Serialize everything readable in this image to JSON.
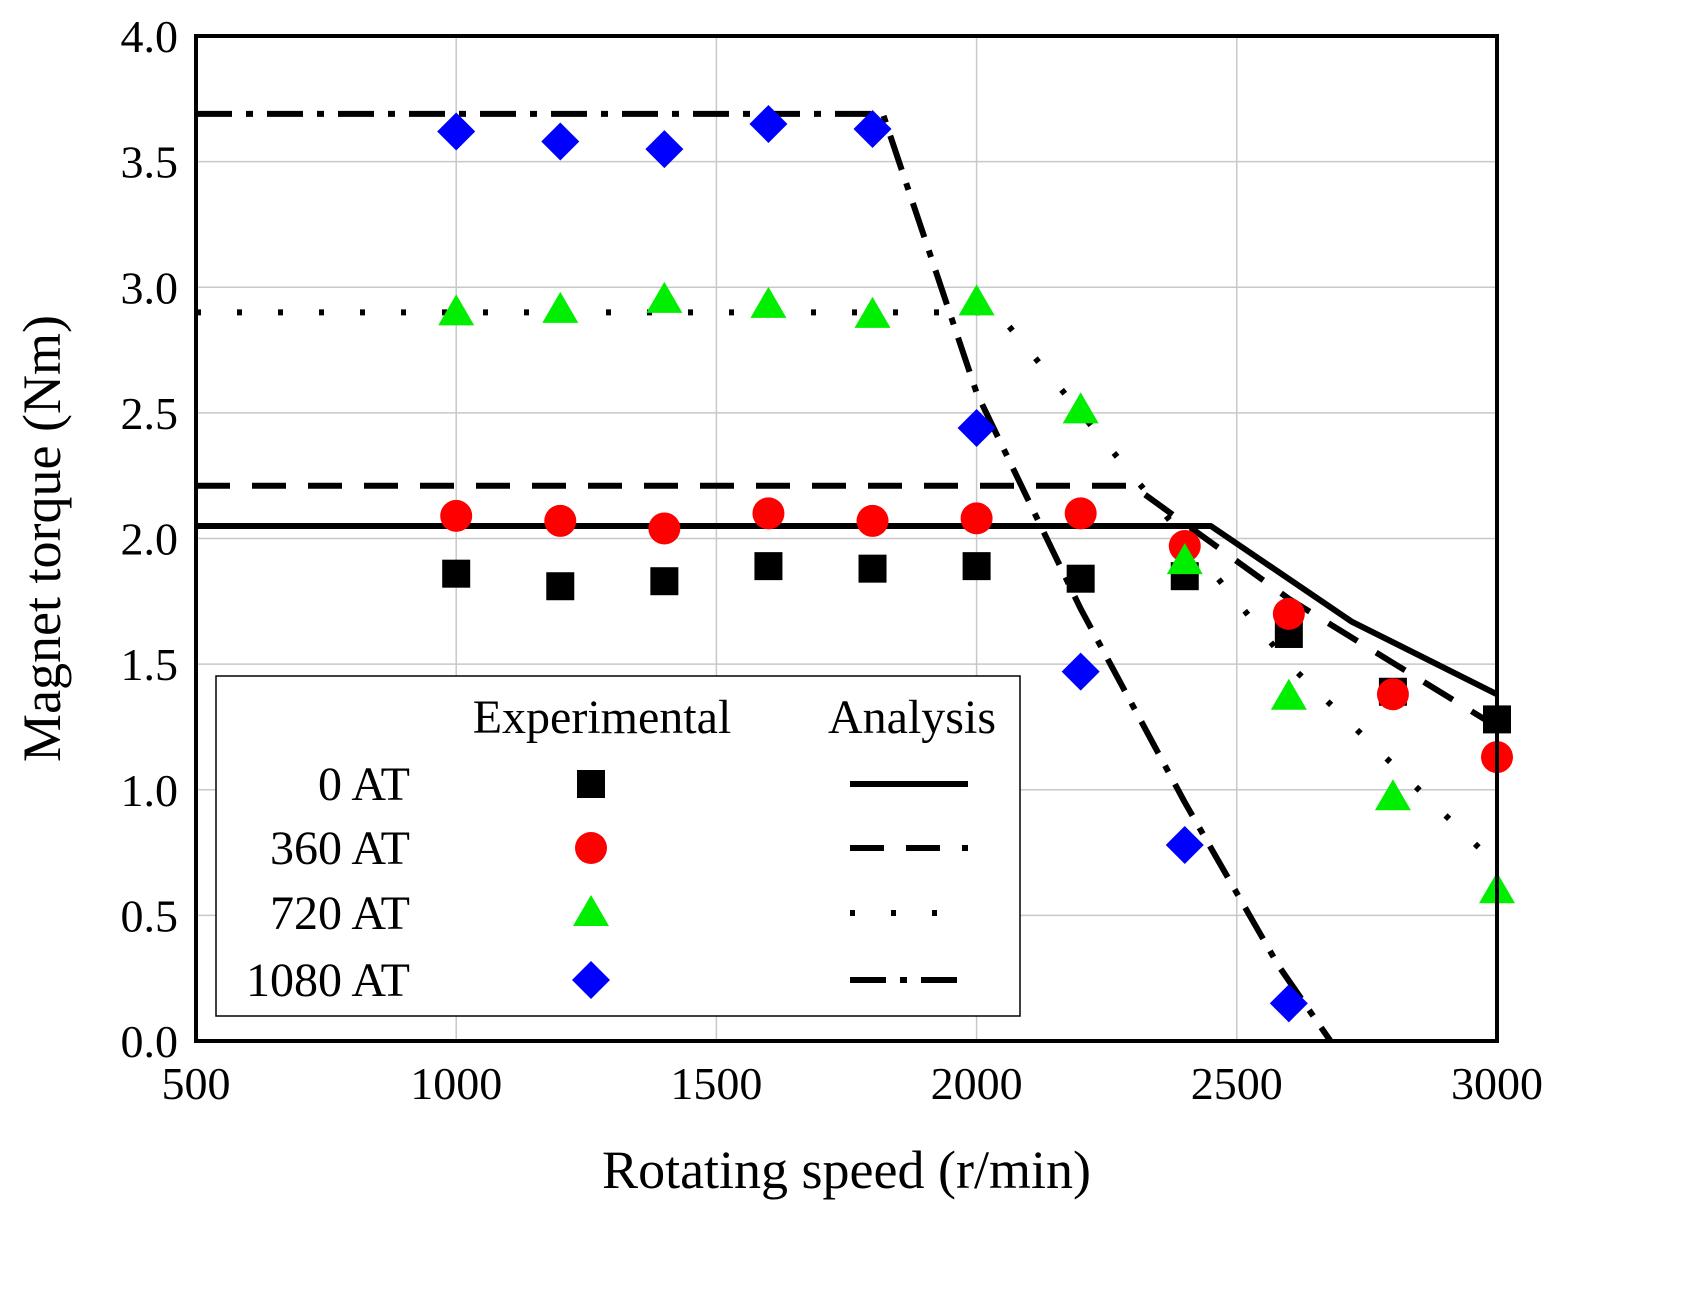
{
  "chart_data": {
    "type": "scatter",
    "xlabel": "Rotating speed (r/min)",
    "ylabel": "Magnet torque (Nm)",
    "xlim": [
      500,
      3000
    ],
    "ylim": [
      0.0,
      4.0
    ],
    "x_ticks": [
      "500",
      "1000",
      "1500",
      "2000",
      "2500",
      "3000"
    ],
    "y_ticks": [
      "0.0",
      "0.5",
      "1.0",
      "1.5",
      "2.0",
      "2.5",
      "3.0",
      "3.5",
      "4.0"
    ],
    "grid": true,
    "legend": {
      "placement": "bottom-left",
      "header_experimental": "Experimental",
      "header_analysis": "Analysis",
      "entries": [
        "0 AT",
        "360 AT",
        "720 AT",
        "1080 AT"
      ]
    },
    "series": [
      {
        "name": "0 AT",
        "marker": "square",
        "color": "#000000",
        "line_style": "solid",
        "experimental": {
          "x": [
            1000,
            1200,
            1400,
            1600,
            1800,
            2000,
            2200,
            2400,
            2600,
            2800,
            3000
          ],
          "y": [
            1.86,
            1.81,
            1.83,
            1.89,
            1.88,
            1.89,
            1.84,
            1.85,
            1.62,
            1.39,
            1.28
          ]
        },
        "analysis": {
          "x": [
            500,
            2450,
            2720,
            3000
          ],
          "y": [
            2.05,
            2.05,
            1.67,
            1.38
          ]
        }
      },
      {
        "name": "360 AT",
        "marker": "circle",
        "color": "#ff0000",
        "line_style": "dashed",
        "experimental": {
          "x": [
            1000,
            1200,
            1400,
            1600,
            1800,
            2000,
            2200,
            2400,
            2600,
            2800,
            3000
          ],
          "y": [
            2.09,
            2.07,
            2.04,
            2.1,
            2.07,
            2.08,
            2.1,
            1.97,
            1.7,
            1.38,
            1.13
          ]
        },
        "analysis": {
          "x": [
            500,
            2300,
            2600,
            3000
          ],
          "y": [
            2.21,
            2.21,
            1.76,
            1.25
          ]
        }
      },
      {
        "name": "720 AT",
        "marker": "triangle",
        "color": "#00ee00",
        "line_style": "dotted",
        "experimental": {
          "x": [
            1000,
            1200,
            1400,
            1600,
            1800,
            2000,
            2200,
            2400,
            2600,
            2800,
            3000
          ],
          "y": [
            2.9,
            2.91,
            2.95,
            2.93,
            2.89,
            2.94,
            2.51,
            1.91,
            1.37,
            0.97,
            0.6
          ]
        },
        "analysis": {
          "x": [
            500,
            2040,
            2600,
            3000
          ],
          "y": [
            2.9,
            2.9,
            1.5,
            0.7
          ]
        }
      },
      {
        "name": "1080 AT",
        "marker": "diamond",
        "color": "#0000ff",
        "line_style": "dashdot",
        "experimental": {
          "x": [
            1000,
            1200,
            1400,
            1600,
            1800,
            2000,
            2200,
            2400,
            2600
          ],
          "y": [
            3.62,
            3.58,
            3.55,
            3.65,
            3.63,
            2.44,
            1.47,
            0.78,
            0.15
          ]
        },
        "analysis": {
          "x": [
            500,
            1820,
            2000,
            2200,
            2400,
            2580,
            2680
          ],
          "y": [
            3.69,
            3.69,
            2.58,
            1.72,
            0.95,
            0.3,
            0.0
          ]
        }
      }
    ]
  }
}
